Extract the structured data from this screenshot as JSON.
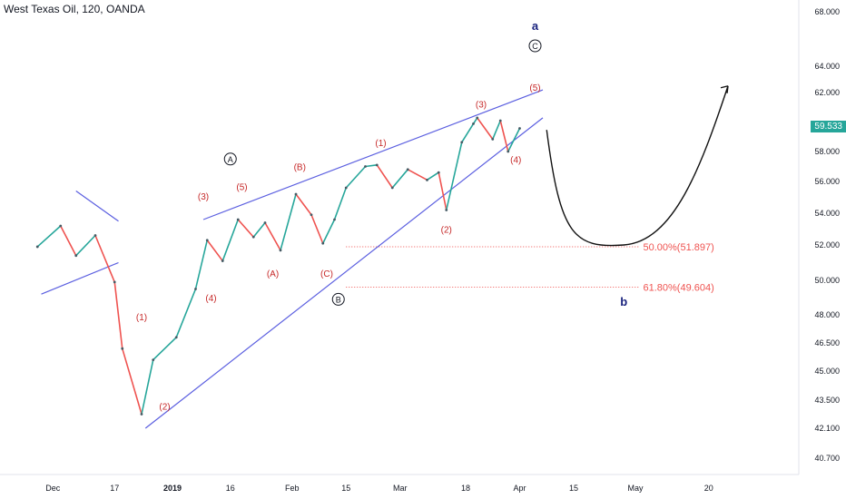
{
  "header": {
    "title": "West Texas Oil, 120, OANDA"
  },
  "colors": {
    "up": "#26a69a",
    "down": "#ef5350",
    "wedge": "#5b5fe0",
    "fib": "#ef5350",
    "label_red": "#c62828",
    "label_navy": "#1a237e",
    "circle": "#131722",
    "price_tag_bg": "#26a69a",
    "axis_text": "#131722"
  },
  "chart_data": {
    "type": "line",
    "title": "West Texas Oil, 120, OANDA",
    "xlabel": "",
    "ylabel": "",
    "x_ticks": [
      "Dec",
      "17",
      "2019",
      "16",
      "Feb",
      "15",
      "Mar",
      "18",
      "Apr",
      "15",
      "May",
      "20"
    ],
    "y_ticks": [
      "68.000",
      "64.000",
      "62.000",
      "58.000",
      "56.000",
      "54.000",
      "52.000",
      "50.000",
      "48.000",
      "46.500",
      "45.000",
      "43.500",
      "42.100",
      "40.700"
    ],
    "current_price": "59.533",
    "price_series": [
      [
        "Nov 27",
        51.9
      ],
      [
        "Dec 3",
        53.2
      ],
      [
        "Dec 7",
        51.4
      ],
      [
        "Dec 12",
        52.6
      ],
      [
        "Dec 17",
        49.9
      ],
      [
        "Dec 19",
        46.2
      ],
      [
        "Dec 24",
        42.8
      ],
      [
        "Dec 27",
        45.6
      ],
      [
        "Jan 2",
        46.8
      ],
      [
        "Jan 7",
        49.5
      ],
      [
        "Jan 10",
        52.3
      ],
      [
        "Jan 14",
        51.1
      ],
      [
        "Jan 18",
        53.6
      ],
      [
        "Jan 22",
        52.5
      ],
      [
        "Jan 25",
        53.4
      ],
      [
        "Jan 29",
        51.7
      ],
      [
        "Feb 2",
        55.2
      ],
      [
        "Feb 6",
        53.9
      ],
      [
        "Feb 9",
        52.1
      ],
      [
        "Feb 12",
        53.6
      ],
      [
        "Feb 15",
        55.6
      ],
      [
        "Feb 20",
        57.0
      ],
      [
        "Feb 23",
        57.1
      ],
      [
        "Feb 27",
        55.6
      ],
      [
        "Mar 3",
        56.8
      ],
      [
        "Mar 8",
        56.1
      ],
      [
        "Mar 11",
        56.6
      ],
      [
        "Mar 13",
        54.2
      ],
      [
        "Mar 17",
        58.6
      ],
      [
        "Mar 20",
        59.8
      ],
      [
        "Mar 21",
        60.2
      ],
      [
        "Mar 25",
        58.8
      ],
      [
        "Mar 27",
        60.0
      ],
      [
        "Mar 29",
        58.0
      ],
      [
        "Apr 1",
        59.5
      ]
    ],
    "wedge_upper": [
      [
        "Jan 9",
        53.6
      ],
      [
        "Apr 7",
        62.2
      ]
    ],
    "wedge_lower": [
      [
        "Dec 25",
        42.1
      ],
      [
        "Apr 7",
        60.2
      ]
    ],
    "triangle_upper": [
      [
        "Dec 7",
        55.4
      ],
      [
        "Dec 18",
        53.5
      ]
    ],
    "triangle_lower": [
      [
        "Nov 28",
        49.2
      ],
      [
        "Dec 18",
        51.0
      ]
    ],
    "projection": [
      [
        "Apr 8",
        59.4
      ],
      [
        "Apr 28",
        52.0
      ],
      [
        "May 25",
        62.5
      ]
    ],
    "fib_levels": [
      {
        "label": "50.00%(51.897)",
        "value": 51.897
      },
      {
        "label": "61.80%(49.604)",
        "value": 49.604
      }
    ],
    "wave_labels": [
      {
        "text": "(1)",
        "style": "red",
        "x": "Dec 24",
        "y": 47.9
      },
      {
        "text": "(2)",
        "style": "red",
        "x": "Dec 30",
        "y": 43.2
      },
      {
        "text": "(3)",
        "style": "red",
        "x": "Jan 9",
        "y": 55.1
      },
      {
        "text": "(4)",
        "style": "red",
        "x": "Jan 11",
        "y": 49.0
      },
      {
        "text": "(5)",
        "style": "red",
        "x": "Jan 19",
        "y": 55.7
      },
      {
        "text": "(A)",
        "style": "red",
        "x": "Jan 27",
        "y": 50.4
      },
      {
        "text": "(B)",
        "style": "red",
        "x": "Feb 3",
        "y": 57.0
      },
      {
        "text": "(C)",
        "style": "red",
        "x": "Feb 10",
        "y": 50.4
      },
      {
        "text": "(1)",
        "style": "red",
        "x": "Feb 24",
        "y": 58.6
      },
      {
        "text": "(2)",
        "style": "red",
        "x": "Mar 13",
        "y": 53.0
      },
      {
        "text": "(3)",
        "style": "red",
        "x": "Mar 22",
        "y": 61.2
      },
      {
        "text": "(4)",
        "style": "red",
        "x": "Mar 31",
        "y": 57.5
      },
      {
        "text": "(5)",
        "style": "red",
        "x": "Apr 5",
        "y": 62.4
      },
      {
        "text": "A",
        "style": "circle",
        "x": "Jan 16",
        "y": 57.5
      },
      {
        "text": "B",
        "style": "circle",
        "x": "Feb 13",
        "y": 48.9
      },
      {
        "text": "C",
        "style": "circle",
        "x": "Apr 5",
        "y": 65.5
      },
      {
        "text": "a",
        "style": "navy",
        "x": "Apr 5",
        "y": 67.0
      },
      {
        "text": "b",
        "style": "navy",
        "x": "Apr 28",
        "y": 48.8
      }
    ]
  }
}
